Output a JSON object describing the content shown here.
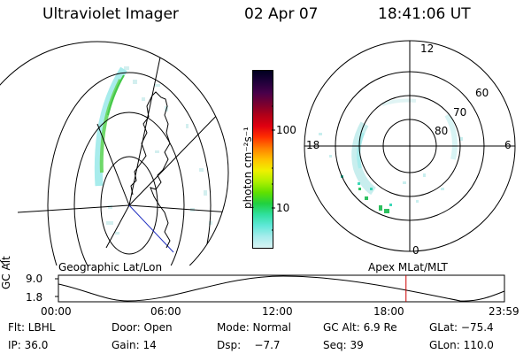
{
  "header": {
    "instrument": "Ultraviolet Imager",
    "date": "02 Apr 07",
    "time": "18:41:06 UT"
  },
  "colorbar": {
    "unit_label": "photon cm⁻²s⁻¹",
    "ticks": [
      "100",
      "10"
    ],
    "colors": [
      "#000020",
      "#20003a",
      "#48004a",
      "#7a0030",
      "#b00018",
      "#e00010",
      "#ff3000",
      "#ff8000",
      "#ffc000",
      "#f0f000",
      "#b0f000",
      "#60e000",
      "#20d040",
      "#30e0a0",
      "#60e8d8",
      "#a8ecec",
      "#d8f4f4"
    ]
  },
  "geo_panel": {
    "label": "Geographic Lat/Lon"
  },
  "polar_panel": {
    "label": "Apex  MLat/MLT",
    "mlt_labels": {
      "top": "12",
      "left": "18",
      "right": "6",
      "bottom": "0"
    },
    "lat_labels": [
      "60",
      "70",
      "80"
    ]
  },
  "timeline": {
    "axis_label": "GC Alt",
    "y_ticks": [
      "9.0",
      "1.8"
    ],
    "x_ticks": [
      "00:00",
      "06:00",
      "12:00",
      "18:00",
      "23:59"
    ],
    "current_time_hours": 18.69,
    "marker_color": "#cc0000"
  },
  "info": {
    "row1": {
      "filter": "Flt: LBHL",
      "door": "Door: Open",
      "mode": "Mode: Normal",
      "gc_alt": "GC Alt: 6.9 Re",
      "glat": "GLat: −75.4"
    },
    "row2": {
      "ip": "IP: 36.0",
      "gain": "Gain: 14",
      "dsp": "Dsp:    −7.7",
      "seq": "Seq: 39",
      "glon": "GLon: 110.0"
    }
  }
}
